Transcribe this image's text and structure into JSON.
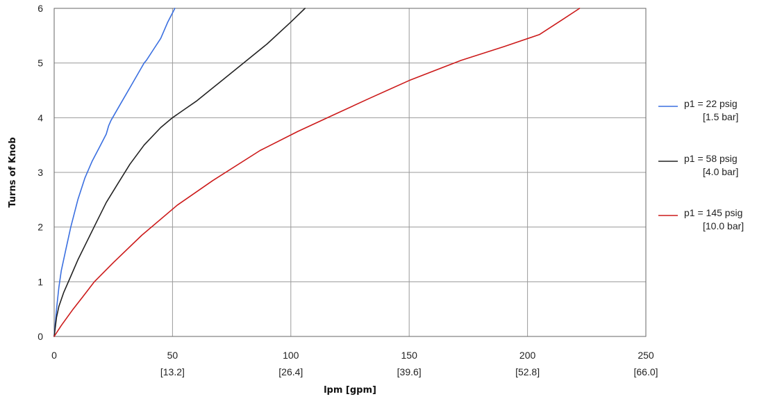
{
  "chart_data": {
    "type": "line",
    "xlabel": "lpm [gpm]",
    "ylabel": "Turns of Knob",
    "xlim": [
      0,
      250
    ],
    "ylim": [
      0,
      6
    ],
    "x_ticks": [
      {
        "value": 0,
        "label": "0",
        "sublabel": ""
      },
      {
        "value": 50,
        "label": "50",
        "sublabel": "[13.2]"
      },
      {
        "value": 100,
        "label": "100",
        "sublabel": "[26.4]"
      },
      {
        "value": 150,
        "label": "150",
        "sublabel": "[39.6]"
      },
      {
        "value": 200,
        "label": "200",
        "sublabel": "[52.8]"
      },
      {
        "value": 250,
        "label": "250",
        "sublabel": "[66.0]"
      }
    ],
    "y_ticks": [
      {
        "value": 0,
        "label": "0"
      },
      {
        "value": 1,
        "label": "1"
      },
      {
        "value": 2,
        "label": "2"
      },
      {
        "value": 3,
        "label": "3"
      },
      {
        "value": 4,
        "label": "4"
      },
      {
        "value": 5,
        "label": "5"
      },
      {
        "value": 6,
        "label": "6"
      }
    ],
    "grid": true,
    "legend_position": "right",
    "series": [
      {
        "name": "p1 = 22 psig",
        "name_sub": "[1.5 bar]",
        "color": "#3a6fe0",
        "points": [
          [
            0,
            0
          ],
          [
            1,
            0.5
          ],
          [
            2,
            0.9
          ],
          [
            3,
            1.2
          ],
          [
            5,
            1.6
          ],
          [
            7,
            2.0
          ],
          [
            10,
            2.5
          ],
          [
            13,
            2.9
          ],
          [
            16,
            3.2
          ],
          [
            19,
            3.45
          ],
          [
            22,
            3.7
          ],
          [
            23,
            3.85
          ],
          [
            24,
            3.95
          ],
          [
            28,
            4.25
          ],
          [
            32,
            4.55
          ],
          [
            36,
            4.85
          ],
          [
            38,
            5.0
          ],
          [
            39,
            5.05
          ],
          [
            42,
            5.25
          ],
          [
            45,
            5.45
          ],
          [
            48,
            5.75
          ],
          [
            51,
            6.0
          ]
        ]
      },
      {
        "name": "p1 = 58 psig",
        "name_sub": "[4.0 bar]",
        "color": "#222222",
        "points": [
          [
            0,
            0
          ],
          [
            1,
            0.35
          ],
          [
            2,
            0.55
          ],
          [
            4,
            0.8
          ],
          [
            7,
            1.1
          ],
          [
            10,
            1.4
          ],
          [
            14,
            1.75
          ],
          [
            18,
            2.1
          ],
          [
            22,
            2.45
          ],
          [
            27,
            2.8
          ],
          [
            32,
            3.15
          ],
          [
            38,
            3.5
          ],
          [
            45,
            3.82
          ],
          [
            50,
            4.0
          ],
          [
            55,
            4.15
          ],
          [
            60,
            4.3
          ],
          [
            70,
            4.65
          ],
          [
            80,
            5.0
          ],
          [
            90,
            5.35
          ],
          [
            100,
            5.75
          ],
          [
            106,
            6.0
          ]
        ]
      },
      {
        "name": "p1 = 145 psig",
        "name_sub": "[10.0 bar]",
        "color": "#cc1a1a",
        "points": [
          [
            0,
            0
          ],
          [
            3,
            0.2
          ],
          [
            8,
            0.5
          ],
          [
            12,
            0.72
          ],
          [
            17,
            1.0
          ],
          [
            25,
            1.35
          ],
          [
            37,
            1.85
          ],
          [
            52,
            2.4
          ],
          [
            67,
            2.85
          ],
          [
            87,
            3.4
          ],
          [
            103,
            3.75
          ],
          [
            118,
            4.05
          ],
          [
            133,
            4.35
          ],
          [
            150,
            4.68
          ],
          [
            172,
            5.05
          ],
          [
            190,
            5.3
          ],
          [
            205,
            5.52
          ],
          [
            215,
            5.8
          ],
          [
            222,
            6.0
          ]
        ]
      }
    ]
  }
}
